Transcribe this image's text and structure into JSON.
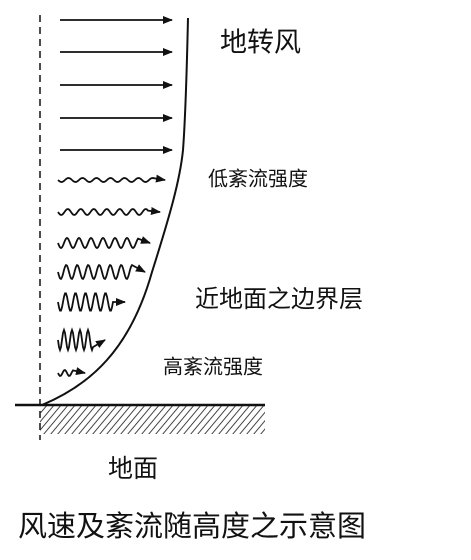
{
  "labels": {
    "geostrophic_wind": "地转风",
    "low_turbulence": "低紊流强度",
    "boundary_layer": "近地面之边界层",
    "high_turbulence": "高紊流强度",
    "ground": "地面"
  },
  "caption": "风速及紊流随高度之示意图"
}
